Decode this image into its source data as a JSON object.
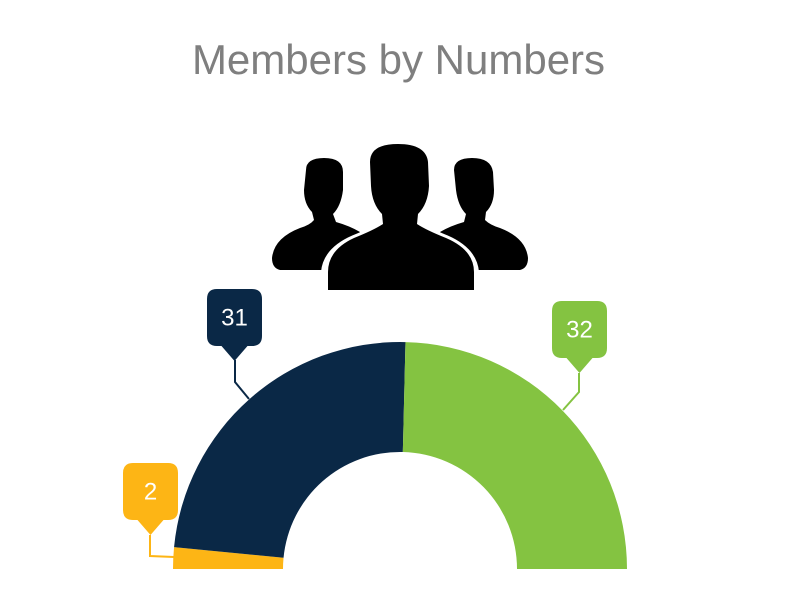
{
  "chart_data": {
    "type": "pie",
    "variant": "semi-donut",
    "title": "Members by Numbers",
    "slices": [
      {
        "value": 2,
        "label": "2",
        "color": "#FDB515"
      },
      {
        "value": 31,
        "label": "31",
        "color": "#0A2846"
      },
      {
        "value": 32,
        "label": "32",
        "color": "#84C341"
      }
    ],
    "legend": "none",
    "icon": "people-group-icon",
    "title_color": "#7F7F7F"
  }
}
